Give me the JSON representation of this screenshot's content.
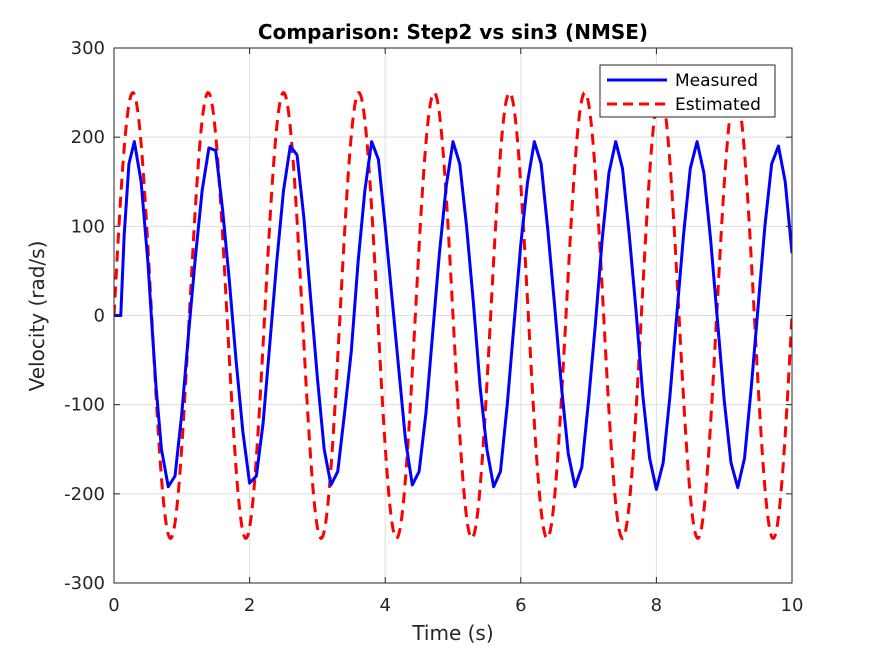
{
  "chart_data": {
    "type": "line",
    "title": "Comparison: Step2 vs sin3 (NMSE)",
    "xlabel": "Time (s)",
    "ylabel": "Velocity (rad/s)",
    "xlim": [
      0,
      10
    ],
    "ylim": [
      -300,
      300
    ],
    "xticks": [
      0,
      2,
      4,
      6,
      8,
      10
    ],
    "yticks": [
      -300,
      -200,
      -100,
      0,
      100,
      200,
      300
    ],
    "grid": true,
    "legend_position": "top-right",
    "series": [
      {
        "name": "Measured",
        "color": "#0000ff",
        "style": "solid",
        "x": [
          0,
          0.1,
          0.15,
          0.22,
          0.3,
          0.4,
          0.5,
          0.55,
          0.62,
          0.7,
          0.8,
          0.9,
          1.0,
          1.1,
          1.2,
          1.3,
          1.4,
          1.5,
          1.6,
          1.7,
          1.8,
          1.9,
          2.0,
          2.1,
          2.2,
          2.3,
          2.4,
          2.5,
          2.6,
          2.7,
          2.8,
          2.9,
          3.0,
          3.1,
          3.2,
          3.3,
          3.4,
          3.5,
          3.6,
          3.7,
          3.8,
          3.9,
          4.0,
          4.1,
          4.2,
          4.3,
          4.4,
          4.5,
          4.6,
          4.7,
          4.8,
          4.9,
          5.0,
          5.1,
          5.2,
          5.3,
          5.4,
          5.5,
          5.6,
          5.7,
          5.8,
          5.9,
          6.0,
          6.1,
          6.2,
          6.3,
          6.4,
          6.5,
          6.6,
          6.7,
          6.8,
          6.9,
          7.0,
          7.1,
          7.2,
          7.3,
          7.4,
          7.5,
          7.6,
          7.7,
          7.8,
          7.9,
          8.0,
          8.1,
          8.2,
          8.3,
          8.4,
          8.5,
          8.6,
          8.7,
          8.8,
          8.9,
          9.0,
          9.1,
          9.2,
          9.3,
          9.4,
          9.5,
          9.6,
          9.7,
          9.8,
          9.9,
          10.0
        ],
        "y": [
          0,
          0,
          90,
          170,
          195,
          150,
          60,
          0,
          -80,
          -150,
          -192,
          -180,
          -110,
          -20,
          65,
          140,
          188,
          185,
          120,
          40,
          -50,
          -130,
          -188,
          -180,
          -120,
          -30,
          60,
          140,
          190,
          180,
          110,
          20,
          -70,
          -150,
          -190,
          -175,
          -110,
          -40,
          60,
          140,
          195,
          175,
          100,
          20,
          -60,
          -140,
          -190,
          -175,
          -110,
          -20,
          70,
          145,
          195,
          170,
          100,
          15,
          -80,
          -150,
          -192,
          -175,
          -100,
          -10,
          80,
          150,
          195,
          170,
          95,
          10,
          -80,
          -155,
          -192,
          -170,
          -95,
          -10,
          85,
          160,
          195,
          165,
          90,
          5,
          -90,
          -160,
          -195,
          -165,
          -90,
          0,
          90,
          165,
          195,
          160,
          85,
          -5,
          -95,
          -165,
          -193,
          -160,
          -80,
          10,
          100,
          170,
          190,
          150,
          70
        ]
      },
      {
        "name": "Estimated",
        "color": "#ff0000",
        "style": "dashed",
        "amplitude": 250,
        "frequency_hz": 0.9,
        "phase_rad": 0
      }
    ]
  }
}
